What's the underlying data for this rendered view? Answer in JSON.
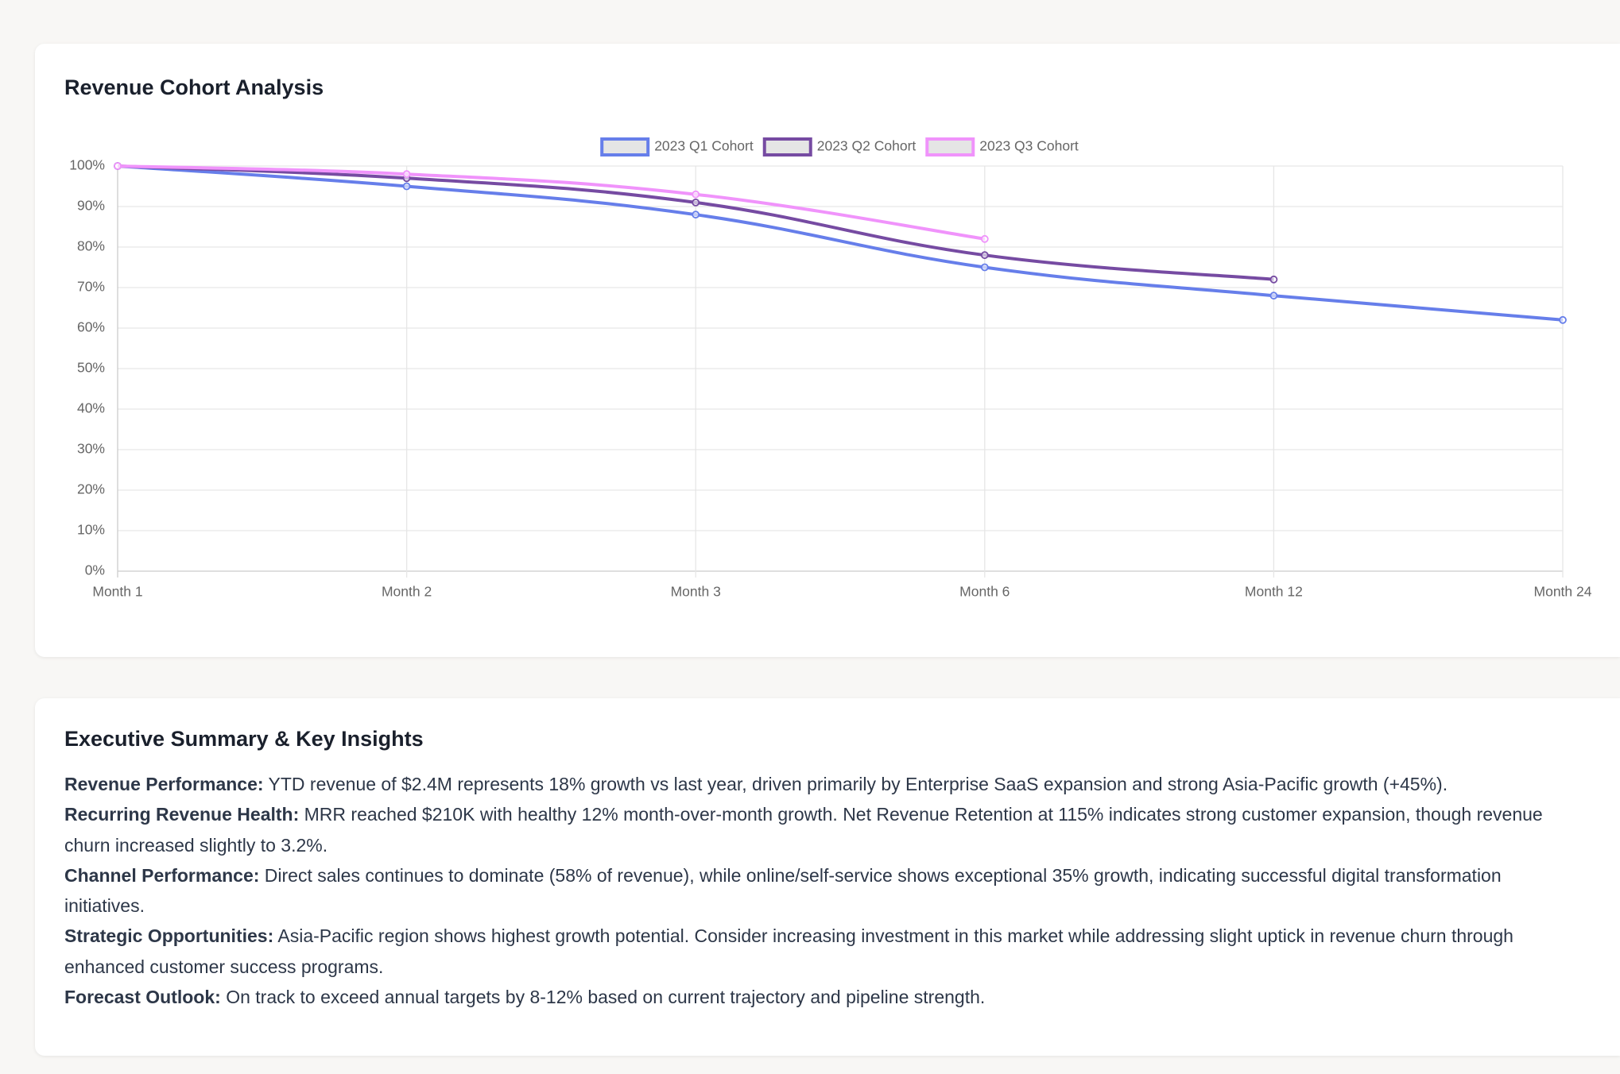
{
  "chart_data": {
    "type": "line",
    "title": "Revenue Cohort Analysis",
    "categories": [
      "Month 1",
      "Month 2",
      "Month 3",
      "Month 6",
      "Month 12",
      "Month 24"
    ],
    "series": [
      {
        "name": "2023 Q1 Cohort",
        "color": "#667eea",
        "values": [
          100,
          95,
          88,
          75,
          68,
          62
        ]
      },
      {
        "name": "2023 Q2 Cohort",
        "color": "#764ba2",
        "values": [
          100,
          97,
          91,
          78,
          72,
          null
        ]
      },
      {
        "name": "2023 Q3 Cohort",
        "color": "#f093fb",
        "values": [
          100,
          98,
          93,
          82,
          null,
          null
        ]
      }
    ],
    "ylim": [
      0,
      100
    ],
    "yticks": [
      {
        "value": 0,
        "label": "0%"
      },
      {
        "value": 10,
        "label": "10%"
      },
      {
        "value": 20,
        "label": "20%"
      },
      {
        "value": 30,
        "label": "30%"
      },
      {
        "value": 40,
        "label": "40%"
      },
      {
        "value": 50,
        "label": "50%"
      },
      {
        "value": 60,
        "label": "60%"
      },
      {
        "value": 70,
        "label": "70%"
      },
      {
        "value": 80,
        "label": "80%"
      },
      {
        "value": 90,
        "label": "90%"
      },
      {
        "value": 100,
        "label": "100%"
      }
    ],
    "grid": true,
    "legend": "top"
  },
  "summary": {
    "title": "Executive Summary & Key Insights",
    "items": [
      {
        "label": "Revenue Performance:",
        "text": "YTD revenue of $2.4M represents 18% growth vs last year, driven primarily by Enterprise SaaS expansion and strong Asia-Pacific growth (+45%)."
      },
      {
        "label": "Recurring Revenue Health:",
        "text": "MRR reached $210K with healthy 12% month-over-month growth. Net Revenue Retention at 115% indicates strong customer expansion, though revenue churn increased slightly to 3.2%."
      },
      {
        "label": "Channel Performance:",
        "text": "Direct sales continues to dominate (58% of revenue), while online/self-service shows exceptional 35% growth, indicating successful digital transformation initiatives."
      },
      {
        "label": "Strategic Opportunities:",
        "text": "Asia-Pacific region shows highest growth potential. Consider increasing investment in this market while addressing slight uptick in revenue churn through enhanced customer success programs."
      },
      {
        "label": "Forecast Outlook:",
        "text": "On track to exceed annual targets by 8-12% based on current trajectory and pipeline strength."
      }
    ]
  }
}
